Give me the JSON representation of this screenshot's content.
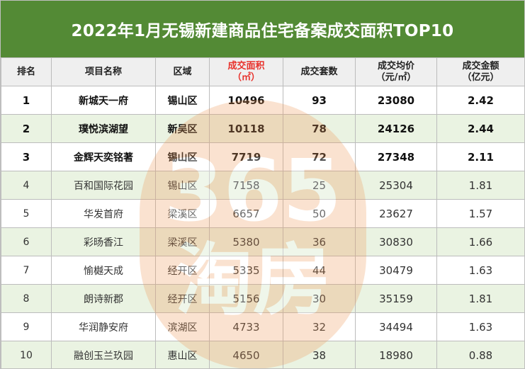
{
  "title": "2022年1月无锡新建商品住宅备案成交面积TOP10",
  "headers": {
    "rank": "排名",
    "project": "项目名称",
    "district": "区域",
    "area_line1": "成交面积",
    "area_line2": "（㎡）",
    "units": "成交套数",
    "price_line1": "成交均价",
    "price_line2": "（元/㎡）",
    "amount_line1": "成交金额",
    "amount_line2": "（亿元）"
  },
  "colors": {
    "title_bg": "#538a35",
    "highlight_header": "#e8312b",
    "row_alt": "#eaf3e2",
    "watermark": "#ee9a5a"
  },
  "watermark": {
    "line1": "365",
    "line2": "淘房"
  },
  "rows": [
    {
      "rank": "1",
      "project": "新城天一府",
      "district": "锡山区",
      "area": "10496",
      "units": "93",
      "price": "23080",
      "amount": "2.42"
    },
    {
      "rank": "2",
      "project": "璞悦滨湖望",
      "district": "新吴区",
      "area": "10118",
      "units": "78",
      "price": "24126",
      "amount": "2.44"
    },
    {
      "rank": "3",
      "project": "金辉天奕铭著",
      "district": "锡山区",
      "area": "7719",
      "units": "72",
      "price": "27348",
      "amount": "2.11"
    },
    {
      "rank": "4",
      "project": "百和国际花园",
      "district": "锡山区",
      "area": "7158",
      "units": "25",
      "price": "25304",
      "amount": "1.81"
    },
    {
      "rank": "5",
      "project": "华发首府",
      "district": "梁溪区",
      "area": "6657",
      "units": "50",
      "price": "23627",
      "amount": "1.57"
    },
    {
      "rank": "6",
      "project": "彩旸香江",
      "district": "梁溪区",
      "area": "5380",
      "units": "36",
      "price": "30830",
      "amount": "1.66"
    },
    {
      "rank": "7",
      "project": "愉樾天成",
      "district": "经开区",
      "area": "5335",
      "units": "44",
      "price": "30479",
      "amount": "1.63"
    },
    {
      "rank": "8",
      "project": "朗诗新郡",
      "district": "经开区",
      "area": "5156",
      "units": "30",
      "price": "35159",
      "amount": "1.81"
    },
    {
      "rank": "9",
      "project": "华润静安府",
      "district": "滨湖区",
      "area": "4733",
      "units": "32",
      "price": "34494",
      "amount": "1.63"
    },
    {
      "rank": "10",
      "project": "融创玉兰玖园",
      "district": "惠山区",
      "area": "4650",
      "units": "38",
      "price": "18980",
      "amount": "0.88"
    }
  ]
}
